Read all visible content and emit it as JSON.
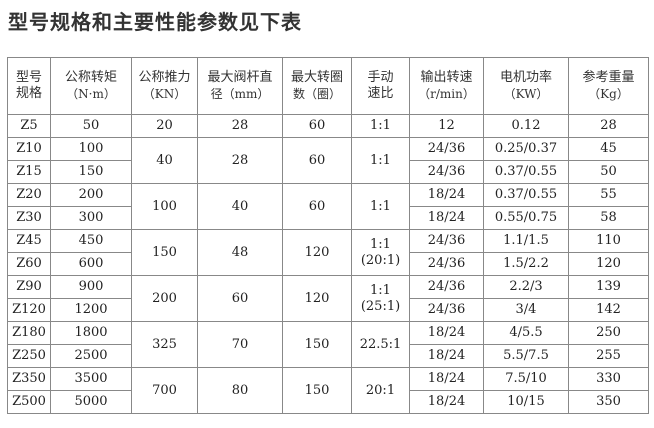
{
  "title": "型号规格和主要性能参数见下表",
  "headers": [
    {
      "name": "型号",
      "unit": "规格"
    },
    {
      "name": "公称转矩",
      "unit": "（N·m）"
    },
    {
      "name": "公称推力",
      "unit": "（KN）"
    },
    {
      "name": "最大阀杆直",
      "unit": "径（mm）"
    },
    {
      "name": "最大转圈",
      "unit": "数（圈）"
    },
    {
      "name": "手动",
      "unit": "速比"
    },
    {
      "name": "输出转速",
      "unit": "（r/min）"
    },
    {
      "name": "电机功率",
      "unit": "（KW）"
    },
    {
      "name": "参考重量",
      "unit": "（Kg）"
    }
  ],
  "groups": [
    {
      "thrust": "20",
      "stem": "28",
      "turns": "60",
      "ratio": "1:1",
      "rows": [
        {
          "model": "Z5",
          "torque": "50",
          "speed": "12",
          "power": "0.12",
          "weight": "28"
        }
      ]
    },
    {
      "thrust": "40",
      "stem": "28",
      "turns": "60",
      "ratio": "1:1",
      "rows": [
        {
          "model": "Z10",
          "torque": "100",
          "speed": "24/36",
          "power": "0.25/0.37",
          "weight": "45"
        },
        {
          "model": "Z15",
          "torque": "150",
          "speed": "24/36",
          "power": "0.37/0.55",
          "weight": "50"
        }
      ]
    },
    {
      "thrust": "100",
      "stem": "40",
      "turns": "60",
      "ratio": "1:1",
      "rows": [
        {
          "model": "Z20",
          "torque": "200",
          "speed": "18/24",
          "power": "0.37/0.55",
          "weight": "55"
        },
        {
          "model": "Z30",
          "torque": "300",
          "speed": "18/24",
          "power": "0.55/0.75",
          "weight": "58"
        }
      ]
    },
    {
      "thrust": "150",
      "stem": "48",
      "turns": "120",
      "ratio": "1:1\n(20:1)",
      "rows": [
        {
          "model": "Z45",
          "torque": "450",
          "speed": "24/36",
          "power": "1.1/1.5",
          "weight": "110"
        },
        {
          "model": "Z60",
          "torque": "600",
          "speed": "24/36",
          "power": "1.5/2.2",
          "weight": "120"
        }
      ]
    },
    {
      "thrust": "200",
      "stem": "60",
      "turns": "120",
      "ratio": "1:1\n(25:1)",
      "rows": [
        {
          "model": "Z90",
          "torque": "900",
          "speed": "24/36",
          "power": "2.2/3",
          "weight": "139"
        },
        {
          "model": "Z120",
          "torque": "1200",
          "speed": "24/36",
          "power": "3/4",
          "weight": "142"
        }
      ]
    },
    {
      "thrust": "325",
      "stem": "70",
      "turns": "150",
      "ratio": "22.5:1",
      "rows": [
        {
          "model": "Z180",
          "torque": "1800",
          "speed": "18/24",
          "power": "4/5.5",
          "weight": "250"
        },
        {
          "model": "Z250",
          "torque": "2500",
          "speed": "18/24",
          "power": "5.5/7.5",
          "weight": "255"
        }
      ]
    },
    {
      "thrust": "700",
      "stem": "80",
      "turns": "150",
      "ratio": "20:1",
      "rows": [
        {
          "model": "Z350",
          "torque": "3500",
          "speed": "18/24",
          "power": "7.5/10",
          "weight": "330"
        },
        {
          "model": "Z500",
          "torque": "5000",
          "speed": "18/24",
          "power": "10/15",
          "weight": "350"
        }
      ]
    }
  ]
}
